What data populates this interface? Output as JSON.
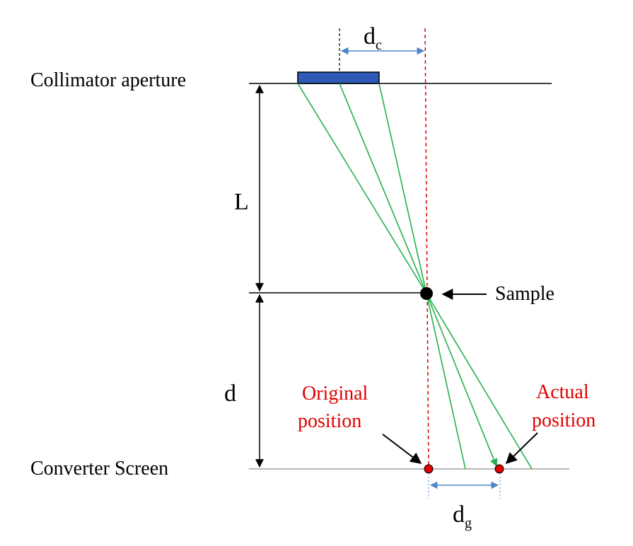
{
  "labels": {
    "collimator": "Collimator aperture",
    "converter": "Converter Screen",
    "sample": "Sample",
    "L": "L",
    "d": "d",
    "dc_main": "d",
    "dc_sub": "c",
    "dg_main": "d",
    "dg_sub": "g",
    "original_line1": "Original",
    "original_line2": "position",
    "actual_line1": "Actual",
    "actual_line2": "position"
  },
  "colors": {
    "aperture": "#2f5bb7",
    "rays": "#22b14c",
    "axis": "#e00000",
    "measure": "#4a86c8",
    "points": "#e00000"
  }
}
